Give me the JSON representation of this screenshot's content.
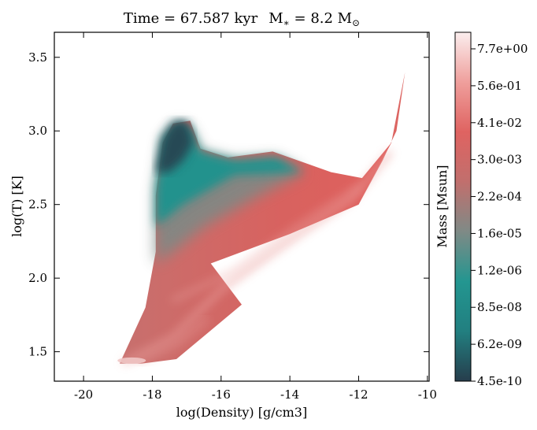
{
  "chart_data": {
    "type": "heatmap",
    "title": "Time = 67.587 kyr    M$_*$ = 8.2 M$_\\odot$",
    "title_parts": {
      "time": "Time = 67.587 kyr",
      "mass_prefix": "M",
      "mass_sub": "∗",
      "mass_value": " = 8.2 M",
      "mass_unit_sub": "⊙"
    },
    "xlabel": "log(Density) [g/cm3]",
    "ylabel": "log(T) [K]",
    "xlim": [
      -20.85,
      -9.95
    ],
    "ylim": [
      1.3,
      3.67
    ],
    "xticks": [
      -20,
      -18,
      -16,
      -14,
      -12,
      -10
    ],
    "xtick_labels": [
      "-20",
      "-18",
      "-16",
      "-14",
      "-12",
      "-10"
    ],
    "yticks": [
      1.5,
      2.0,
      2.5,
      3.0,
      3.5
    ],
    "ytick_labels": [
      "1.5",
      "2.0",
      "2.5",
      "3.0",
      "3.5"
    ],
    "colorbar": {
      "label": "Mass [Msun]",
      "tick_labels": [
        "4.5e-10",
        "6.2e-09",
        "8.5e-08",
        "1.2e-06",
        "1.6e-05",
        "2.2e-04",
        "3.0e-03",
        "4.1e-02",
        "5.6e-01",
        "7.7e+00"
      ],
      "scale": "log",
      "colors": [
        "#263d4c",
        "#227f80",
        "#239690",
        "#7f8a86",
        "#c16f6d",
        "#df6361",
        "#ef9f9c",
        "#fbeeee"
      ]
    },
    "distribution": {
      "outline": [
        [
          -18.95,
          1.42
        ],
        [
          -18.3,
          1.42
        ],
        [
          -17.3,
          1.45
        ],
        [
          -15.4,
          1.82
        ],
        [
          -16.3,
          2.1
        ],
        [
          -14.0,
          2.3
        ],
        [
          -12.0,
          2.5
        ],
        [
          -11.05,
          2.92
        ],
        [
          -11.9,
          2.68
        ],
        [
          -12.8,
          2.72
        ],
        [
          -14.5,
          2.86
        ],
        [
          -15.8,
          2.82
        ],
        [
          -16.6,
          2.88
        ],
        [
          -16.9,
          3.07
        ],
        [
          -17.4,
          3.05
        ],
        [
          -17.7,
          2.92
        ],
        [
          -17.9,
          2.56
        ],
        [
          -17.9,
          2.18
        ],
        [
          -18.2,
          1.8
        ]
      ],
      "cool_region": [
        [
          -17.9,
          2.1
        ],
        [
          -17.9,
          2.6
        ],
        [
          -17.7,
          2.95
        ],
        [
          -17.3,
          3.05
        ],
        [
          -16.9,
          3.02
        ],
        [
          -16.6,
          2.86
        ],
        [
          -15.6,
          2.8
        ],
        [
          -14.4,
          2.82
        ],
        [
          -13.6,
          2.72
        ],
        [
          -15.0,
          2.55
        ],
        [
          -16.5,
          2.35
        ],
        [
          -17.3,
          2.2
        ]
      ],
      "dark_region": [
        [
          -17.9,
          2.72
        ],
        [
          -17.7,
          2.95
        ],
        [
          -17.4,
          3.06
        ],
        [
          -17.0,
          3.07
        ],
        [
          -16.8,
          2.92
        ],
        [
          -17.1,
          2.8
        ],
        [
          -17.5,
          2.72
        ]
      ],
      "hot_tail": [
        [
          -12.0,
          2.5
        ],
        [
          -11.05,
          2.92
        ],
        [
          -10.65,
          3.4
        ],
        [
          -10.9,
          3.0
        ],
        [
          -11.3,
          2.8
        ]
      ],
      "ridge_lines": [
        [
          [
            -18.8,
            1.43
          ],
          [
            -17.4,
            1.6
          ],
          [
            -16.0,
            1.92
          ],
          [
            -14.2,
            2.22
          ],
          [
            -12.2,
            2.54
          ],
          [
            -11.1,
            2.85
          ]
        ],
        [
          [
            -18.4,
            1.43
          ],
          [
            -17.3,
            1.55
          ],
          [
            -16.4,
            1.72
          ]
        ],
        [
          [
            -17.4,
            1.85
          ],
          [
            -15.6,
            2.05
          ],
          [
            -13.8,
            2.35
          ],
          [
            -12.0,
            2.62
          ]
        ]
      ]
    }
  }
}
